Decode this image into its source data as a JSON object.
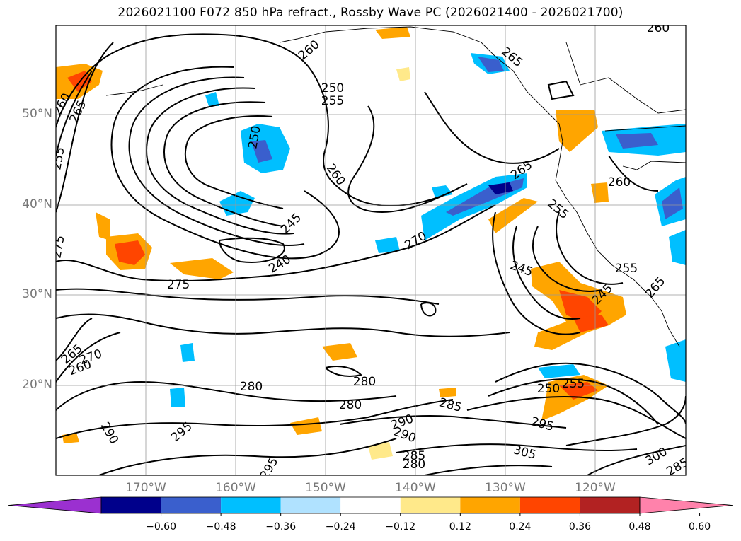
{
  "title": "2026021100 F072 850 hPa refract., Rossby Wave PC (2026021400 - 2026021700)",
  "lat_labels": [
    "50°N",
    "40°N",
    "30°N",
    "20°N"
  ],
  "lon_labels": [
    "170°W",
    "160°W",
    "150°W",
    "140°W",
    "130°W",
    "120°W"
  ],
  "colorbar": {
    "ticks": [
      "−0.60",
      "−0.48",
      "−0.36",
      "−0.24",
      "−0.12",
      "0.12",
      "0.24",
      "0.36",
      "0.48",
      "0.60"
    ],
    "colors": [
      "#9b30d0",
      "#00008b",
      "#3a5fcd",
      "#00bfff",
      "#b0e2ff",
      "#ffffff",
      "#ffe98a",
      "#ffa500",
      "#ff4500",
      "#b22222",
      "#ff82ab"
    ]
  },
  "contour_labels": [
    "260",
    "265",
    "255",
    "250",
    "255",
    "260",
    "265",
    "240",
    "245",
    "275",
    "275",
    "270",
    "265",
    "260",
    "290",
    "295",
    "280",
    "280",
    "280",
    "285",
    "290",
    "290",
    "285",
    "280",
    "295",
    "305",
    "300",
    "295",
    "265",
    "270",
    "260",
    "250",
    "245",
    "245",
    "255",
    "265",
    "260",
    "255",
    "260",
    "250",
    "255",
    "285"
  ]
}
